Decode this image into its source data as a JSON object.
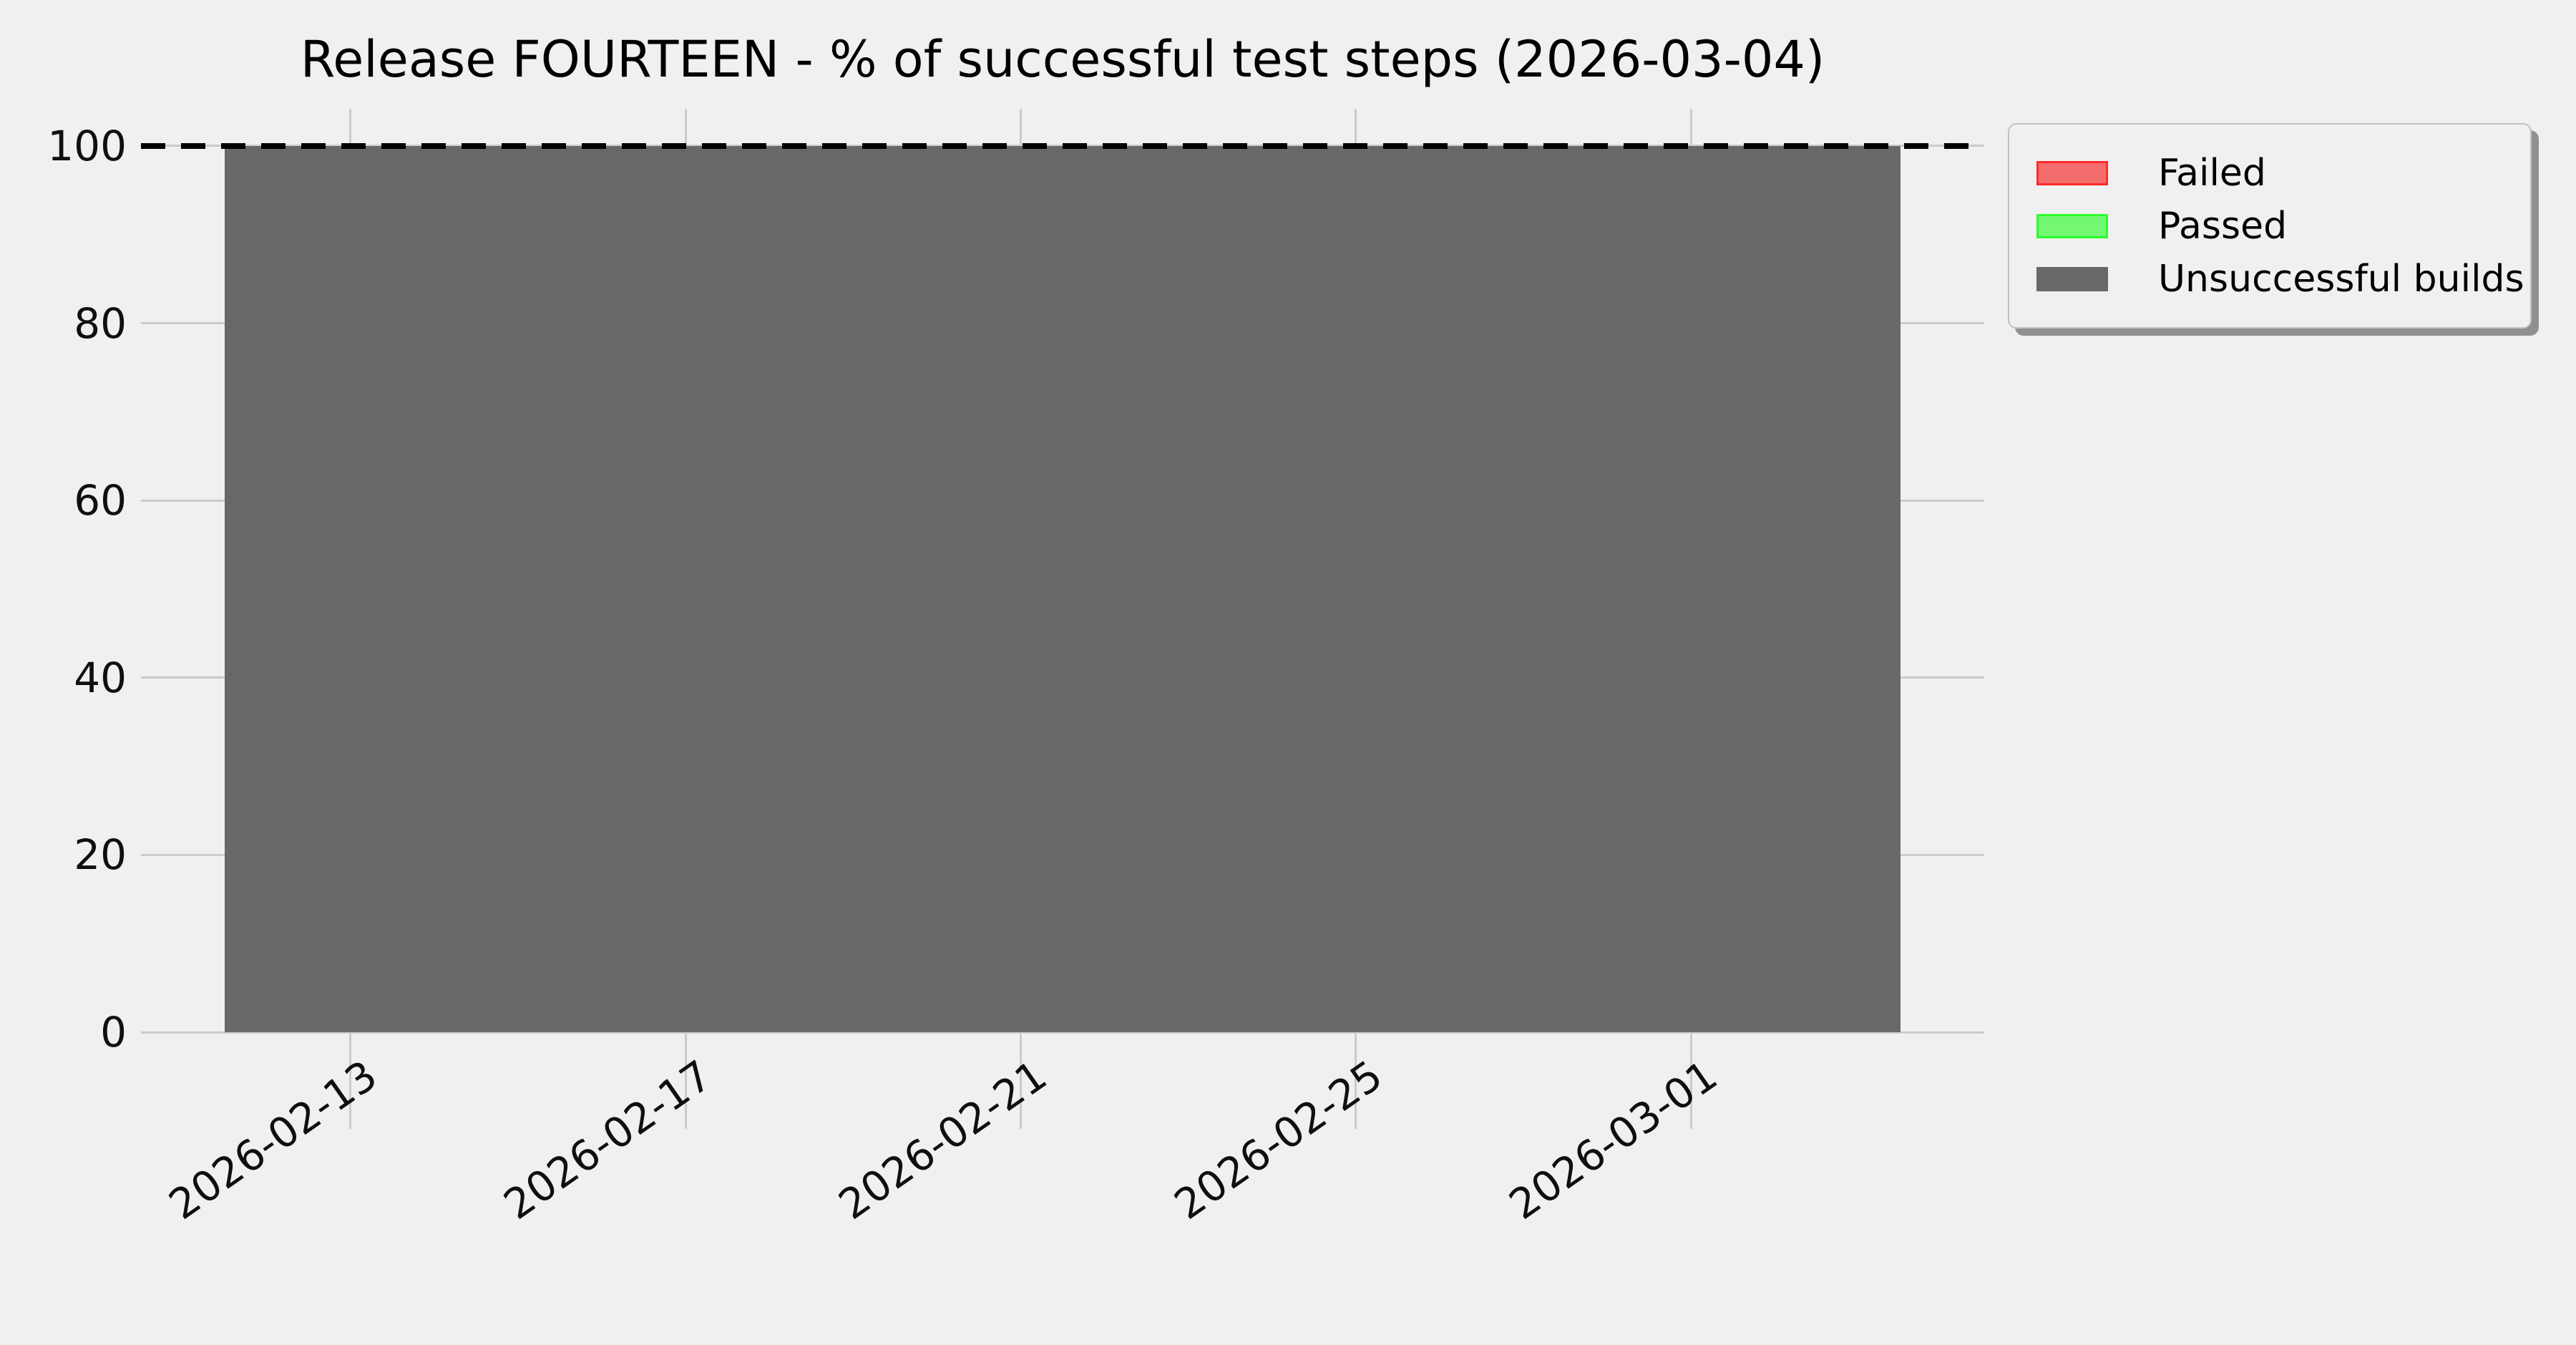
{
  "figure": {
    "background": "#f0f0f0",
    "grid_color": "#cbcbcb"
  },
  "chart_data": {
    "type": "bar",
    "stacked": true,
    "title": "Release FOURTEEN - % of successful test steps (2026-03-04)",
    "xlabel": "",
    "ylabel": "",
    "x": {
      "type": "date",
      "min": "2026-02-10T12:00:00",
      "max": "2026-03-04T12:00:00",
      "tick_labels": [
        "2026-02-13",
        "2026-02-17",
        "2026-02-21",
        "2026-02-25",
        "2026-03-01"
      ],
      "bars_first": "2026-02-12T00:00:00",
      "bars_last": "2026-03-03T00:00:00",
      "bar_width_days": 1
    },
    "y": {
      "min": 0,
      "max": 104.2,
      "ticks": [
        0,
        20,
        40,
        60,
        80,
        100
      ]
    },
    "series": [
      {
        "name": "Failed",
        "color": "#f56e6e",
        "edge": "#ff2a2a",
        "percent_per_day": 0
      },
      {
        "name": "Passed",
        "color": "#74f874",
        "edge": "#2aff2a",
        "percent_per_day": 0
      },
      {
        "name": "Unsuccessful builds",
        "color": "#686868",
        "edge": "#686868",
        "percent_per_day": 100
      }
    ],
    "reference_line": {
      "y": 100,
      "color": "#000000",
      "style": "dashed"
    },
    "grid": true,
    "legend_position": "upper-right-outside",
    "legend_shadow": true
  }
}
